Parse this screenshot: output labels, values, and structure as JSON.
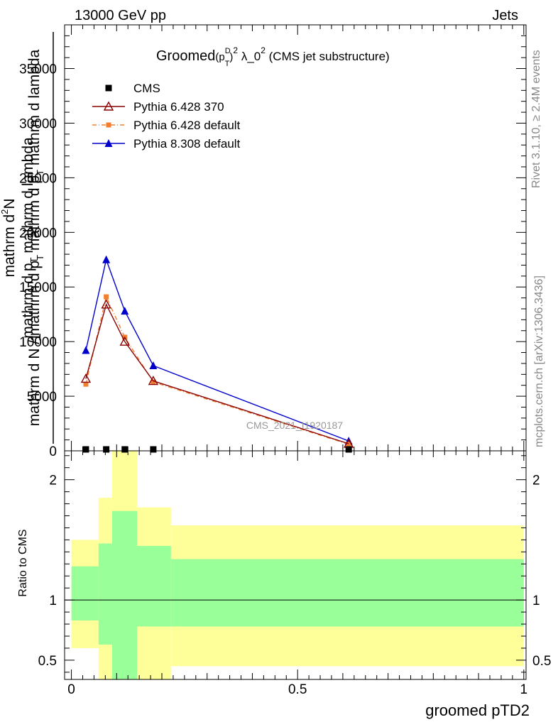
{
  "header": {
    "left": "13000 GeV pp",
    "right": "Jets"
  },
  "title": {
    "prefix": "Groomed",
    "p": "(p",
    "sup_d": "D",
    "sub_t": "T",
    "close": ")",
    "sup_2": "2",
    "lambda": " λ_0",
    "sup_2b": "2",
    "suffix": " (CMS jet substructure)"
  },
  "side_labels": {
    "rivet": "Rivet 3.1.10, ≥ 2.4M events",
    "mcplots": "mcplots.cern.ch [arXiv:1306.3436]"
  },
  "watermark": "CMS_2021_I1920187",
  "y_axis_label": {
    "line1": "mathrm d",
    "line1_sup": "2",
    "line1_end": "N",
    "line2": "mathrm d p",
    "line2_sub": "T",
    "line2_end": " mathrm d lambda",
    "one": "1",
    "denom1": "mathrm d N / mathrm d p",
    "denom1_sub": "T",
    "denom1_end": " mathrm d p",
    "denom2_sub": "T",
    "denom2_end": " mathrm d lambda"
  },
  "ratio_label": "Ratio to CMS",
  "x_label": "groomed pTD2",
  "colors": {
    "cms": "#000000",
    "p6_370": "#8b0000",
    "p6_default": "#f08030",
    "p8": "#0000cc",
    "band_inner": "#99ff99",
    "band_outer": "#ffff99"
  },
  "legend": [
    {
      "label": "CMS",
      "marker": "square",
      "color": "#000000"
    },
    {
      "label": "Pythia 6.428 370",
      "marker": "open-triangle",
      "color": "#8b0000"
    },
    {
      "label": "Pythia 6.428 default",
      "marker": "small-square",
      "color": "#f08030"
    },
    {
      "label": "Pythia 8.308 default",
      "marker": "filled-triangle",
      "color": "#0000cc"
    }
  ],
  "chart_data": {
    "type": "line",
    "xlim": [
      -0.015,
      1.005
    ],
    "main": {
      "ylim": [
        0,
        39000
      ],
      "y_ticks": [
        0,
        5000,
        10000,
        15000,
        20000,
        25000,
        30000,
        35000
      ],
      "y_tick_labels": [
        "0",
        "5000",
        "10000",
        "15000",
        "20000",
        "25000",
        "30000",
        "35000"
      ],
      "series": [
        {
          "name": "CMS",
          "x": [
            0.032,
            0.077,
            0.118,
            0.181,
            0.613
          ],
          "y": [
            0,
            0,
            0,
            0,
            0
          ]
        },
        {
          "name": "Pythia 6.428 370",
          "x": [
            0.032,
            0.077,
            0.118,
            0.181,
            0.613
          ],
          "y": [
            6600,
            13400,
            10000,
            6400,
            650
          ]
        },
        {
          "name": "Pythia 6.428 default",
          "x": [
            0.032,
            0.077,
            0.118,
            0.181,
            0.613
          ],
          "y": [
            6100,
            14100,
            10400,
            6300,
            600
          ]
        },
        {
          "name": "Pythia 8.308 default",
          "x": [
            0.032,
            0.077,
            0.118,
            0.181,
            0.613
          ],
          "y": [
            9200,
            17500,
            12800,
            7800,
            900
          ]
        }
      ]
    },
    "ratio": {
      "ylim": [
        0.34,
        2.24
      ],
      "y_ticks": [
        0.5,
        1,
        2
      ],
      "y_tick_labels": [
        "0.5",
        "1",
        "2"
      ],
      "reference": 1,
      "bins": [
        {
          "x0": 0.0,
          "x1": 0.06,
          "inner": [
            0.83,
            1.28
          ],
          "outer": [
            0.6,
            1.5
          ]
        },
        {
          "x0": 0.06,
          "x1": 0.09,
          "inner": [
            0.63,
            1.47
          ],
          "outer": [
            0.34,
            1.85
          ]
        },
        {
          "x0": 0.09,
          "x1": 0.145,
          "inner": [
            0.34,
            1.74
          ],
          "outer": [
            0.34,
            2.24
          ]
        },
        {
          "x0": 0.145,
          "x1": 0.22,
          "inner": [
            0.78,
            1.45
          ],
          "outer": [
            0.34,
            1.77
          ]
        },
        {
          "x0": 0.22,
          "x1": 1.0,
          "inner": [
            0.78,
            1.34
          ],
          "outer": [
            0.45,
            1.62
          ]
        }
      ]
    },
    "x_ticks": [
      0,
      0.5,
      1
    ],
    "x_tick_labels": [
      "0",
      "0.5",
      "1"
    ]
  }
}
